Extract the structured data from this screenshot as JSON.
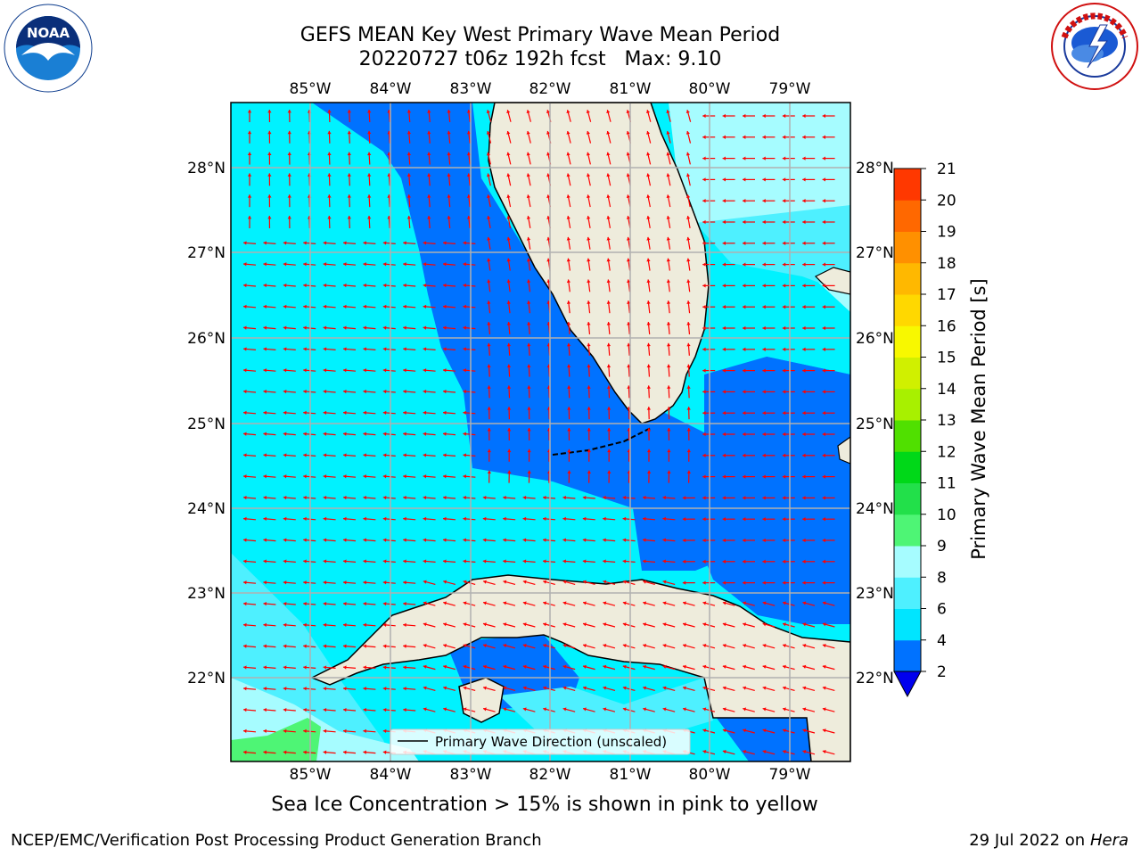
{
  "title": {
    "line1": "GEFS MEAN Key West Primary Wave Mean Period",
    "line2": "20220727 t06z 192h fcst   Max: 9.10"
  },
  "map": {
    "lon_ticks": [
      "85°W",
      "84°W",
      "83°W",
      "82°W",
      "81°W",
      "80°W",
      "79°W"
    ],
    "lat_ticks": [
      "28°N",
      "27°N",
      "26°N",
      "25°N",
      "24°N",
      "23°N",
      "22°N"
    ],
    "legend_label": "Primary Wave Direction (unscaled)"
  },
  "colorbar": {
    "title": "Primary Wave Mean Period [s]",
    "tick_labels": [
      "2",
      "4",
      "6",
      "8",
      "9",
      "10",
      "11",
      "12",
      "13",
      "14",
      "15",
      "16",
      "17",
      "18",
      "19",
      "20",
      "21"
    ],
    "colors": [
      "#0072ff",
      "#00e5ff",
      "#4ef0ff",
      "#a6fcff",
      "#4ef575",
      "#22e04a",
      "#00d818",
      "#50e000",
      "#a8f000",
      "#d0f000",
      "#f8f800",
      "#ffd800",
      "#ffb800",
      "#ff9000",
      "#ff6800",
      "#ff3800"
    ],
    "extend_color": "#0000ee"
  },
  "colors": {
    "land": "#eeecdc",
    "deep_blue": "#0072ff",
    "cyan": "#00f2ff",
    "light_cyan": "#4ef0ff",
    "pale_cyan": "#a6fcff",
    "green": "#4ef575",
    "arrow": "#ff0000"
  },
  "ice_note": "Sea Ice Concentration > 15% is shown in pink to yellow",
  "footer": {
    "left": "NCEP/EMC/Verification Post Processing Product Generation Branch",
    "date": "29 Jul 2022 on ",
    "machine": "Hera"
  }
}
